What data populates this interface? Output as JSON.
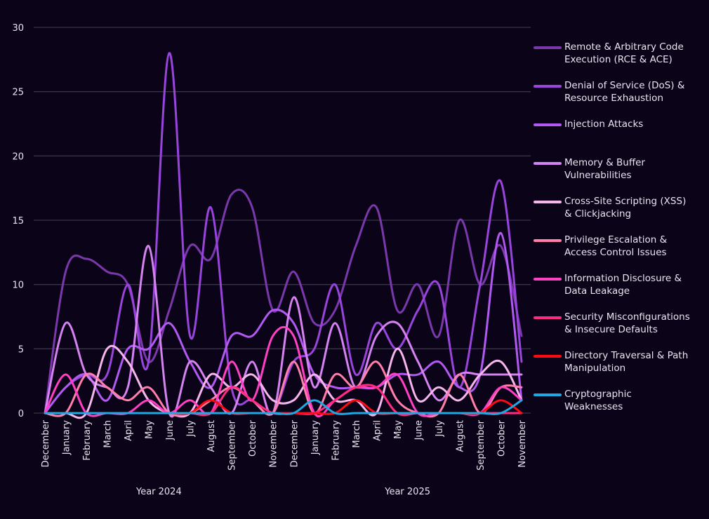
{
  "chart_data": {
    "type": "line",
    "title": "",
    "xlabel": "",
    "ylabel": "",
    "ylim": [
      0,
      30
    ],
    "yticks": [
      0,
      5,
      10,
      15,
      20,
      25,
      30
    ],
    "grid": true,
    "legend_position": "right",
    "x": [
      "December",
      "January",
      "February",
      "March",
      "April",
      "May",
      "June",
      "July",
      "August",
      "September",
      "October",
      "November",
      "December",
      "January",
      "February",
      "March",
      "April",
      "May",
      "June",
      "July",
      "August",
      "September",
      "October",
      "November"
    ],
    "x_groups": [
      {
        "label": "Year 2024",
        "start": 0,
        "end": 11
      },
      {
        "label": "Year 2025",
        "start": 12,
        "end": 23
      }
    ],
    "series": [
      {
        "name": "Remote & Arbitrary Code Execution (RCE & ACE)",
        "color": "#7b38ad",
        "values": [
          0,
          11,
          12,
          11,
          10,
          4,
          8,
          13,
          12,
          17,
          16,
          8,
          11,
          7,
          8,
          13,
          16,
          8,
          10,
          6,
          15,
          10,
          13,
          6
        ]
      },
      {
        "name": "Denial of Service (DoS) & Resource Exhaustion",
        "color": "#9a44de",
        "values": [
          0,
          2,
          3,
          3,
          10,
          4,
          28,
          6,
          16,
          2,
          1,
          0,
          4,
          5,
          10,
          3,
          7,
          5,
          8,
          10,
          2,
          10,
          18,
          4
        ]
      },
      {
        "name": "Injection Attacks",
        "color": "#b159f2",
        "values": [
          0,
          2,
          3,
          1,
          5,
          5,
          7,
          4,
          2,
          6,
          6,
          8,
          7,
          3,
          2,
          2,
          2,
          3,
          3,
          4,
          2,
          3,
          14,
          1
        ]
      },
      {
        "name": "Memory & Buffer Vulnerabilities",
        "color": "#d682f2",
        "values": [
          0,
          7,
          3,
          2,
          2,
          13,
          0,
          4,
          2,
          0,
          4,
          0,
          9,
          2,
          7,
          2,
          6,
          7,
          4,
          1,
          3,
          3,
          3,
          3
        ]
      },
      {
        "name": "Cross-Site Scripting (XSS) & Clickjacking",
        "color": "#f7b5ee",
        "values": [
          0,
          0,
          0,
          5,
          4,
          1,
          0,
          0,
          3,
          2,
          3,
          1,
          1,
          3,
          1,
          1,
          0,
          5,
          1,
          2,
          1,
          3,
          4,
          1
        ]
      },
      {
        "name": "Privilege Escalation & Access Control Issues",
        "color": "#ff7eab",
        "values": [
          0,
          0,
          3,
          2,
          1,
          2,
          0,
          0,
          1,
          2,
          1,
          0,
          4,
          0,
          3,
          2,
          4,
          1,
          0,
          0,
          3,
          0,
          2,
          2
        ]
      },
      {
        "name": "Information Disclosure & Data Leakage",
        "color": "#ff3fc4",
        "values": [
          0,
          3,
          0,
          0,
          0,
          1,
          0,
          1,
          0,
          4,
          1,
          6,
          6,
          0,
          1,
          2,
          2,
          3,
          0,
          0,
          0,
          0,
          2,
          1
        ]
      },
      {
        "name": "Security Misconfigurations & Insecure Defaults",
        "color": "#ff2a82",
        "values": [
          0,
          0,
          0,
          0,
          0,
          0,
          0,
          0,
          0,
          2,
          1,
          0,
          0,
          0,
          1,
          2,
          2,
          0,
          0,
          0,
          0,
          0,
          0,
          0
        ]
      },
      {
        "name": "Directory Traversal & Path Manipulation",
        "color": "#ff0a14",
        "values": [
          0,
          0,
          0,
          0,
          0,
          0,
          0,
          0,
          1,
          0,
          0,
          0,
          0,
          0,
          0,
          1,
          0,
          0,
          0,
          0,
          0,
          0,
          1,
          0
        ]
      },
      {
        "name": "Cryptographic Weaknesses",
        "color": "#1ea9e2",
        "values": [
          0,
          0,
          0,
          0,
          0,
          0,
          0,
          0,
          0,
          0,
          0,
          0,
          0,
          1,
          0,
          0,
          0,
          0,
          0,
          0,
          0,
          0,
          0,
          1
        ]
      }
    ]
  },
  "legend": {
    "items": [
      {
        "lines": [
          "Remote & Arbitrary Code",
          "Execution (RCE & ACE)"
        ]
      },
      {
        "lines": [
          "Denial of Service (DoS) &",
          "Resource Exhaustion"
        ]
      },
      {
        "lines": [
          "Injection Attacks"
        ]
      },
      {
        "lines": [
          "Memory & Buffer",
          "Vulnerabilities"
        ]
      },
      {
        "lines": [
          "Cross-Site Scripting (XSS)",
          "& Clickjacking"
        ]
      },
      {
        "lines": [
          "Privilege Escalation &",
          "Access Control Issues"
        ]
      },
      {
        "lines": [
          "Information Disclosure &",
          "Data Leakage"
        ]
      },
      {
        "lines": [
          "Security Misconfigurations",
          "& Insecure Defaults"
        ]
      },
      {
        "lines": [
          "Directory Traversal & Path",
          "Manipulation"
        ]
      },
      {
        "lines": [
          "Cryptographic",
          "Weaknesses"
        ]
      }
    ]
  },
  "colors": {
    "background": "#0b0418",
    "grid": "#3a3448",
    "text": "#e8e4f0"
  }
}
